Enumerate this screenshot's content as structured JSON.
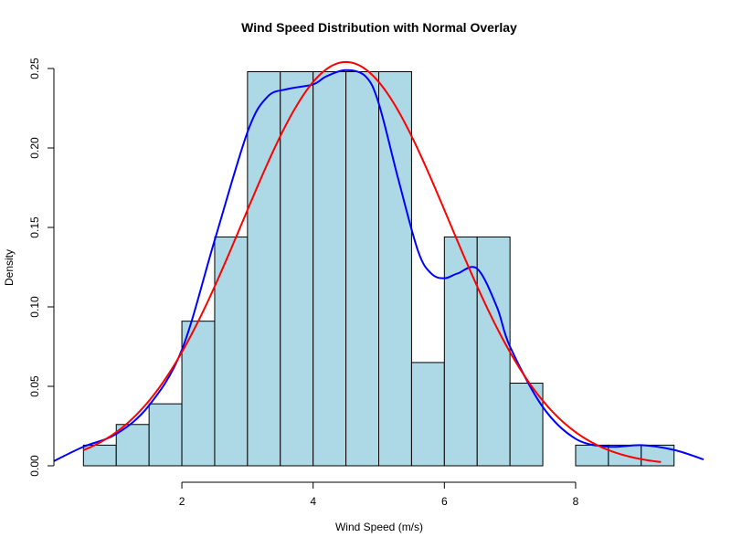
{
  "chart_data": {
    "type": "bar",
    "title": "Wind Speed Distribution with Normal Overlay",
    "xlabel": "Wind Speed (m/s)",
    "ylabel": "Density",
    "xlim": [
      0.05,
      9.95
    ],
    "ylim": [
      0,
      0.26
    ],
    "x_ticks": [
      2,
      4,
      6,
      8
    ],
    "x_tick_labels": [
      "2",
      "4",
      "6",
      "8"
    ],
    "y_ticks": [
      0,
      0.05,
      0.1,
      0.15,
      0.2,
      0.25
    ],
    "y_tick_labels": [
      "0.00",
      "0.05",
      "0.10",
      "0.15",
      "0.20",
      "0.25"
    ],
    "grid": false,
    "histogram": {
      "bin_edges": [
        0.5,
        1.0,
        1.5,
        2.0,
        2.5,
        3.0,
        3.5,
        4.0,
        4.5,
        5.0,
        5.5,
        6.0,
        6.5,
        7.0,
        7.5,
        8.0,
        8.5,
        9.0,
        9.5
      ],
      "densities": [
        0.013,
        0.026,
        0.039,
        0.091,
        0.144,
        0.248,
        0.248,
        0.248,
        0.248,
        0.248,
        0.065,
        0.144,
        0.144,
        0.052,
        0.0,
        0.013,
        0.013,
        0.013
      ],
      "fill": "#ADD8E6",
      "edge": "#000000"
    },
    "series": [
      {
        "style": "density-curve",
        "color": "#0000FF",
        "x": [
          0.05,
          0.5,
          1.0,
          1.5,
          2.0,
          2.5,
          3.0,
          3.3,
          3.6,
          4.0,
          4.2,
          4.5,
          4.8,
          5.0,
          5.3,
          5.6,
          5.8,
          6.0,
          6.2,
          6.5,
          6.8,
          7.0,
          7.5,
          8.0,
          8.5,
          9.0,
          9.5,
          9.95
        ],
        "y": [
          0.003,
          0.012,
          0.02,
          0.038,
          0.073,
          0.142,
          0.21,
          0.232,
          0.237,
          0.24,
          0.245,
          0.249,
          0.245,
          0.228,
          0.18,
          0.135,
          0.121,
          0.118,
          0.121,
          0.124,
          0.1,
          0.075,
          0.037,
          0.017,
          0.012,
          0.013,
          0.01,
          0.004
        ]
      },
      {
        "style": "normal-curve",
        "color": "#FF0000",
        "mean": 4.5,
        "sd": 1.57,
        "x_range": [
          0.5,
          9.3
        ]
      }
    ]
  }
}
